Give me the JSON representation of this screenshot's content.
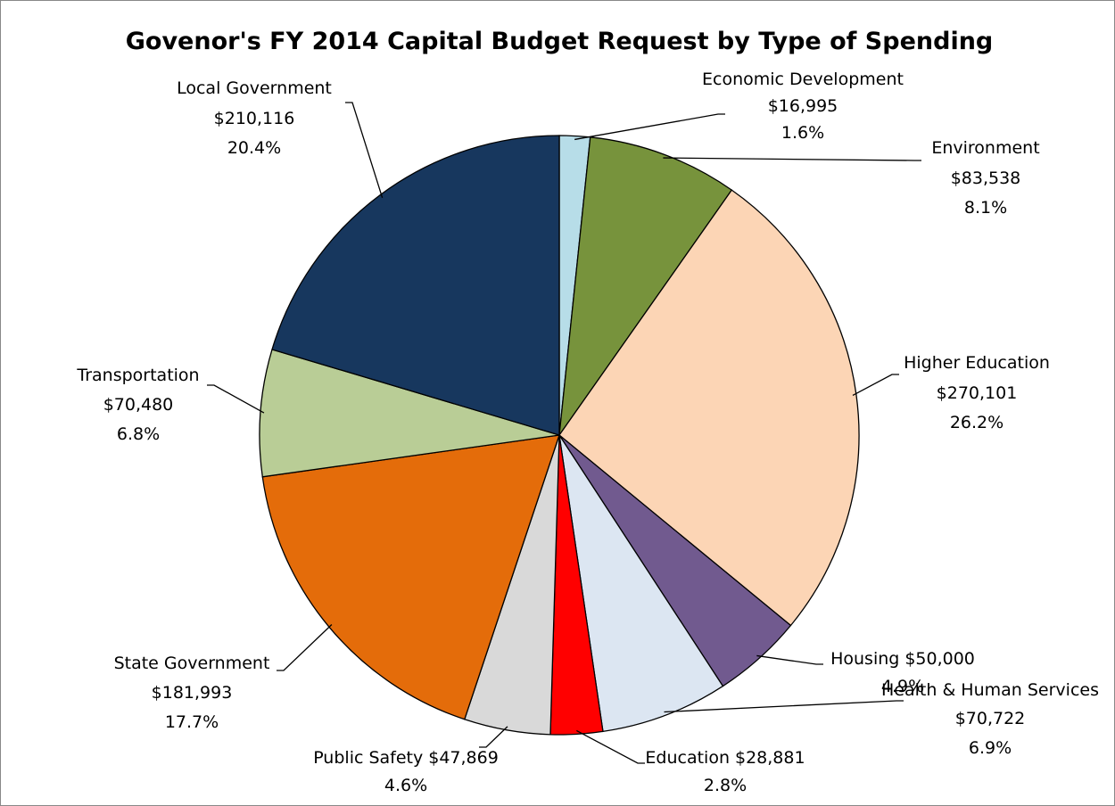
{
  "chart_data": {
    "type": "pie",
    "title": "Govenor's FY 2014 Capital Budget Request by Type of Spending",
    "categories": [
      "Economic Development",
      "Environment",
      "Higher Education",
      "Housing",
      "Health & Human Services",
      "Education",
      "Public Safety",
      "State Government",
      "Transportation",
      "Local Government"
    ],
    "values": [
      16995,
      83538,
      270101,
      50000,
      70722,
      28881,
      47869,
      181993,
      70480,
      210116
    ],
    "value_labels": [
      "$16,995",
      "$83,538",
      "$270,101",
      "$50,000",
      "$70,722",
      "$28,881",
      "$47,869",
      "$181,993",
      "$70,480",
      "$210,116"
    ],
    "percent_labels": [
      "1.6%",
      "8.1%",
      "26.2%",
      "4.9%",
      "6.9%",
      "2.8%",
      "4.6%",
      "17.7%",
      "6.8%",
      "20.4%"
    ],
    "colors": [
      "#b7dde8",
      "#77933c",
      "#fcd5b5",
      "#715a8f",
      "#dce6f2",
      "#ff0000",
      "#d9d9d9",
      "#e46c0a",
      "#b9cd96",
      "#17375e"
    ]
  }
}
